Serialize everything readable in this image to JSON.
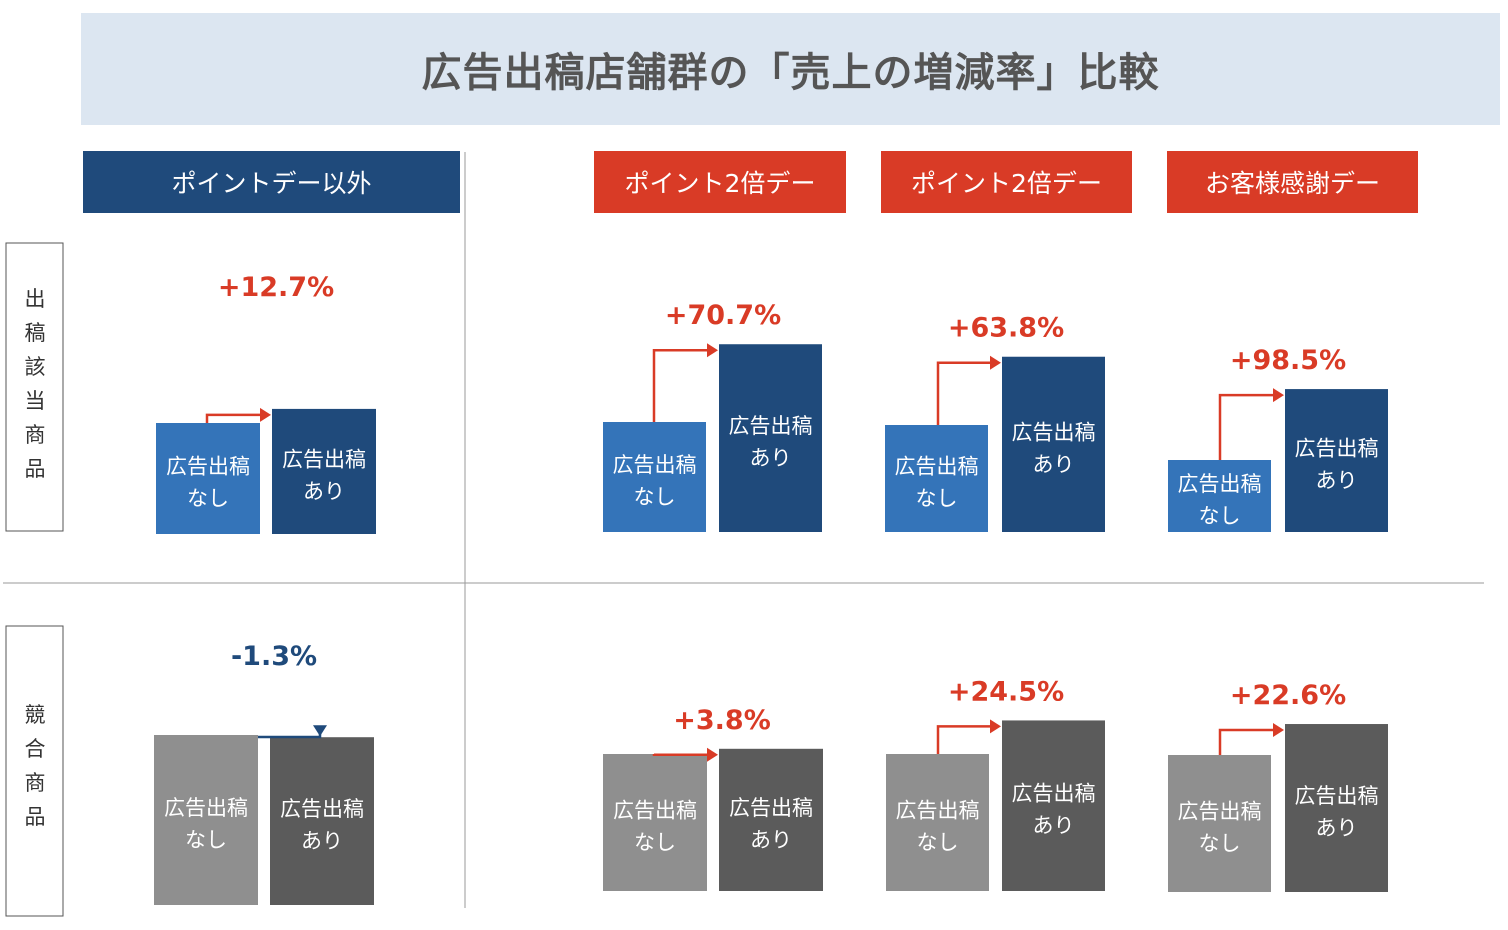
{
  "title": "広告出稿店舗群の「売上の増減率」比較",
  "row_labels": [
    {
      "label": "出稿該当商品",
      "chars": [
        "出",
        "稿",
        "該",
        "当",
        "商",
        "品"
      ]
    },
    {
      "label": "競合商品",
      "chars": [
        "競",
        "合",
        "商",
        "品"
      ]
    }
  ],
  "bar_labels": {
    "no_ad": [
      "広告出稿",
      "なし"
    ],
    "with_ad": [
      "広告出稿",
      "あり"
    ]
  },
  "colors": {
    "header_navy": "#1f4a7b",
    "header_red": "#d93b26",
    "bar_light_blue": "#3474b9",
    "bar_dark_blue": "#1f4a7b",
    "bar_light_gray": "#8f8f8f",
    "bar_dark_gray": "#5b5b5b",
    "positive": "#d93b26",
    "negative": "#1f4a7b"
  },
  "chart_data": [
    {
      "type": "bar",
      "series_group": "出稿該当商品",
      "column": "ポイントデー以外",
      "categories": [
        "広告出稿なし",
        "広告出稿あり"
      ],
      "values": [
        100,
        112.7
      ],
      "change_label": "+12.7%",
      "change_pct": 12.7
    },
    {
      "type": "bar",
      "series_group": "出稿該当商品",
      "column": "ポイント2倍デー",
      "categories": [
        "広告出稿なし",
        "広告出稿あり"
      ],
      "values": [
        100,
        170.7
      ],
      "change_label": "+70.7%",
      "change_pct": 70.7
    },
    {
      "type": "bar",
      "series_group": "出稿該当商品",
      "column": "ポイント2倍デー",
      "categories": [
        "広告出稿なし",
        "広告出稿あり"
      ],
      "values": [
        100,
        163.8
      ],
      "change_label": "+63.8%",
      "change_pct": 63.8
    },
    {
      "type": "bar",
      "series_group": "出稿該当商品",
      "column": "お客様感謝デー",
      "categories": [
        "広告出稿なし",
        "広告出稿あり"
      ],
      "values": [
        100,
        198.5
      ],
      "change_label": "+98.5%",
      "change_pct": 98.5
    },
    {
      "type": "bar",
      "series_group": "競合商品",
      "column": "ポイントデー以外",
      "categories": [
        "広告出稿なし",
        "広告出稿あり"
      ],
      "values": [
        100,
        98.7
      ],
      "change_label": "-1.3%",
      "change_pct": -1.3
    },
    {
      "type": "bar",
      "series_group": "競合商品",
      "column": "ポイント2倍デー",
      "categories": [
        "広告出稿なし",
        "広告出稿あり"
      ],
      "values": [
        100,
        103.8
      ],
      "change_label": "+3.8%",
      "change_pct": 3.8
    },
    {
      "type": "bar",
      "series_group": "競合商品",
      "column": "ポイント2倍デー",
      "categories": [
        "広告出稿なし",
        "広告出稿あり"
      ],
      "values": [
        100,
        124.5
      ],
      "change_label": "+24.5%",
      "change_pct": 24.5
    },
    {
      "type": "bar",
      "series_group": "競合商品",
      "column": "お客様感謝デー",
      "categories": [
        "広告出稿なし",
        "広告出稿あり"
      ],
      "values": [
        100,
        122.6
      ],
      "change_label": "+22.6%",
      "change_pct": 22.6
    }
  ]
}
